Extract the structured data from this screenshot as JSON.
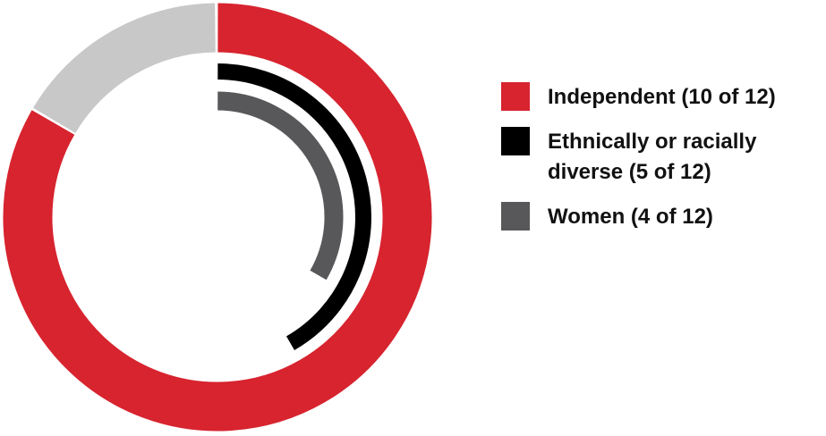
{
  "chart_data": {
    "type": "radial_bar",
    "range": [
      0,
      12
    ],
    "series": [
      {
        "name": "Independent (10 of 12)",
        "color": "#d7242f",
        "track_color": "#c8c8c8",
        "value": 10
      },
      {
        "name": "Ethnically or racially diverse (5 of 12)",
        "color": "#000000",
        "value": 5
      },
      {
        "name": "Women (4 of 12)",
        "color": "#58585a",
        "value": 4
      }
    ]
  }
}
